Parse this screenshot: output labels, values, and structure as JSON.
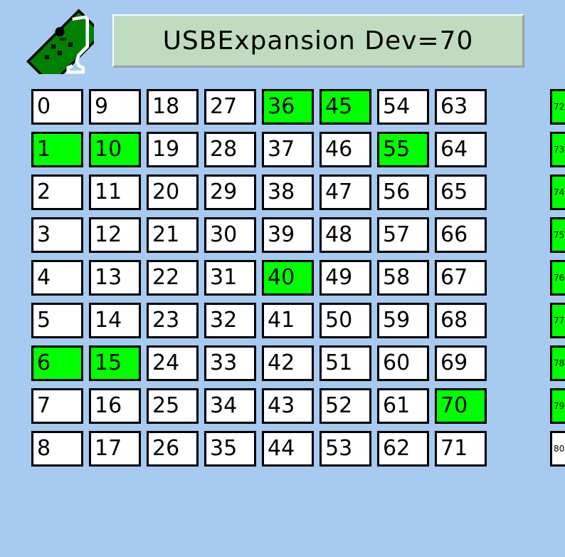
{
  "header": {
    "title": "USBExpansion Dev=70",
    "icon": "circuit-board-usb-icon"
  },
  "colors": {
    "background": "#a6caf0",
    "active": "#00ff00",
    "inactive": "#ffffff",
    "title_bg": "#c0dcc0"
  },
  "grid": {
    "rows": 9,
    "columns_visible": 9,
    "channels": [
      0,
      1,
      2,
      3,
      4,
      5,
      6,
      7,
      8,
      9,
      10,
      11,
      12,
      13,
      14,
      15,
      16,
      17,
      18,
      19,
      20,
      21,
      22,
      23,
      24,
      25,
      26,
      27,
      28,
      29,
      30,
      31,
      32,
      33,
      34,
      35,
      36,
      37,
      38,
      39,
      40,
      41,
      42,
      43,
      44,
      45,
      46,
      47,
      48,
      49,
      50,
      51,
      52,
      53,
      54,
      55,
      56,
      57,
      58,
      59,
      60,
      61,
      62,
      63,
      64,
      65,
      66,
      67,
      68,
      69,
      70,
      71,
      72,
      73,
      74,
      75,
      76,
      77,
      78,
      79,
      80
    ],
    "active": [
      1,
      6,
      10,
      15,
      36,
      40,
      45,
      55,
      70,
      72,
      73,
      74,
      75,
      76,
      77,
      78,
      79
    ]
  }
}
